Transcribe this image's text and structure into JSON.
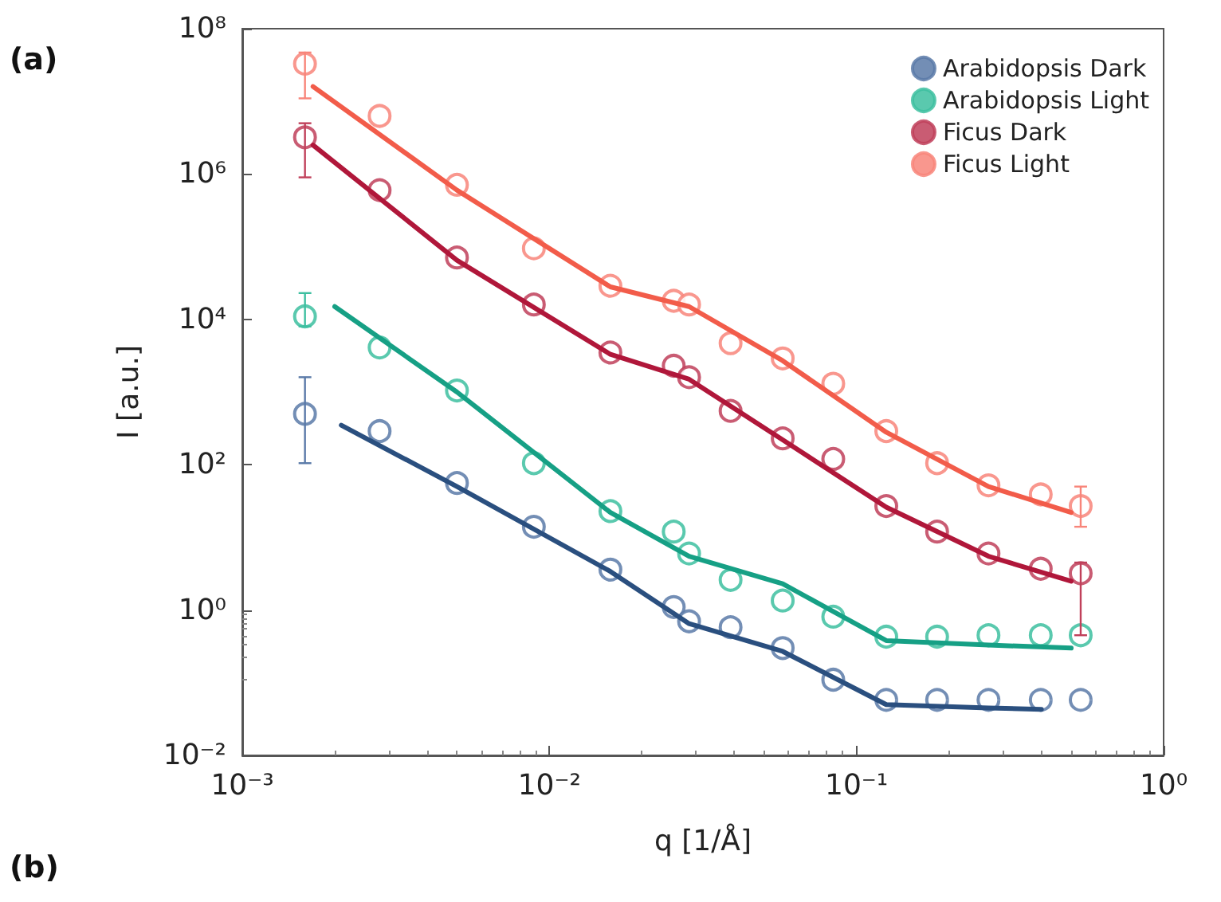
{
  "chart_data": {
    "type": "scatter",
    "xlabel": "q [1/Å]",
    "ylabel": "I [a.u.]",
    "annotations": [
      "(a)",
      "(b)"
    ],
    "log": "xy",
    "xlim": [
      0.001,
      1
    ],
    "ylim": [
      0.01,
      100000000
    ],
    "xticks": [
      {
        "value": 0.001,
        "label": "10⁻³"
      },
      {
        "value": 0.01,
        "label": "10⁻²"
      },
      {
        "value": 0.1,
        "label": "10⁻¹"
      },
      {
        "value": 1,
        "label": "10⁰"
      }
    ],
    "yticks": [
      {
        "value": 0.01,
        "label": "10⁻²"
      },
      {
        "value": 1,
        "label": "10⁰"
      },
      {
        "value": 100,
        "label": "10²"
      },
      {
        "value": 10000,
        "label": "10⁴"
      },
      {
        "value": 1000000,
        "label": "10⁶"
      },
      {
        "value": 100000000,
        "label": "10⁸"
      }
    ],
    "grid": false,
    "legend": "top right",
    "marker": "circle",
    "x": [
      0.0016,
      0.0028,
      0.005,
      0.0089,
      0.0158,
      0.0254,
      0.0285,
      0.0389,
      0.0575,
      0.084,
      0.125,
      0.183,
      0.269,
      0.398,
      0.537
    ],
    "series": [
      {
        "name": "Arabidopsis Dark",
        "color": "#5a7aa8",
        "values": [
          500,
          290,
          56,
          14,
          3.6,
          1.1,
          0.7,
          0.58,
          0.3,
          0.11,
          0.058,
          0.058,
          0.058,
          0.058,
          0.058
        ],
        "errors": [
          [
            105,
            1600
          ],
          null,
          null,
          null,
          null,
          null,
          null,
          null,
          null,
          null,
          null,
          null,
          null,
          null,
          null
        ]
      },
      {
        "name": "Arabidopsis Light",
        "color": "#3dbfa0",
        "values": [
          11000,
          4100,
          1050,
          105,
          23,
          12,
          6,
          2.6,
          1.35,
          0.81,
          0.43,
          0.43,
          0.45,
          0.45,
          0.45
        ],
        "errors": [
          [
            8000,
            23000
          ],
          null,
          null,
          null,
          null,
          null,
          null,
          null,
          null,
          null,
          null,
          null,
          null,
          null,
          null
        ]
      },
      {
        "name": "Ficus Dark",
        "color": "#c0405a",
        "values": [
          3200000,
          600000,
          71000,
          16000,
          3500,
          2300,
          1600,
          550,
          230,
          120,
          27,
          12,
          6,
          3.7,
          3.2
        ],
        "errors": [
          [
            900000,
            5000000
          ],
          null,
          null,
          null,
          null,
          null,
          null,
          null,
          null,
          null,
          null,
          null,
          null,
          null,
          [
            0.45,
            4.5
          ]
        ]
      },
      {
        "name": "Ficus Light",
        "color": "#f8857a",
        "values": [
          33000000,
          6300000,
          710000,
          95000,
          29000,
          18000,
          16000,
          4700,
          2900,
          1300,
          290,
          105,
          52,
          39,
          27
        ],
        "errors": [
          [
            11000000,
            47000000
          ],
          null,
          null,
          null,
          null,
          null,
          null,
          null,
          null,
          null,
          null,
          null,
          null,
          null,
          [
            14,
            50
          ]
        ]
      },
      {
        "type": "line",
        "marker": "none",
        "color": "#2a4f7f",
        "x": [
          0.0021,
          0.005,
          0.0158,
          0.0285,
          0.0575,
          0.125,
          0.269,
          0.4
        ],
        "values": [
          350,
          50,
          3.4,
          0.65,
          0.27,
          0.05,
          0.045,
          0.043
        ]
      },
      {
        "type": "line",
        "marker": "none",
        "color": "#16a085",
        "x": [
          0.002,
          0.005,
          0.0158,
          0.0285,
          0.0575,
          0.125,
          0.269,
          0.5
        ],
        "values": [
          15000,
          1000,
          22,
          5.5,
          2.3,
          0.38,
          0.33,
          0.3
        ]
      },
      {
        "type": "line",
        "marker": "none",
        "color": "#b0173a",
        "x": [
          0.0017,
          0.005,
          0.0158,
          0.0285,
          0.0575,
          0.125,
          0.269,
          0.5
        ],
        "values": [
          2500000,
          65000,
          3300,
          1500,
          220,
          26,
          5.5,
          2.5
        ]
      },
      {
        "type": "line",
        "marker": "none",
        "color": "#f25c4a",
        "x": [
          0.0017,
          0.005,
          0.0158,
          0.0285,
          0.0575,
          0.125,
          0.269,
          0.5
        ],
        "values": [
          16000000,
          600000,
          28000,
          15000,
          2700,
          280,
          50,
          22
        ]
      }
    ]
  }
}
